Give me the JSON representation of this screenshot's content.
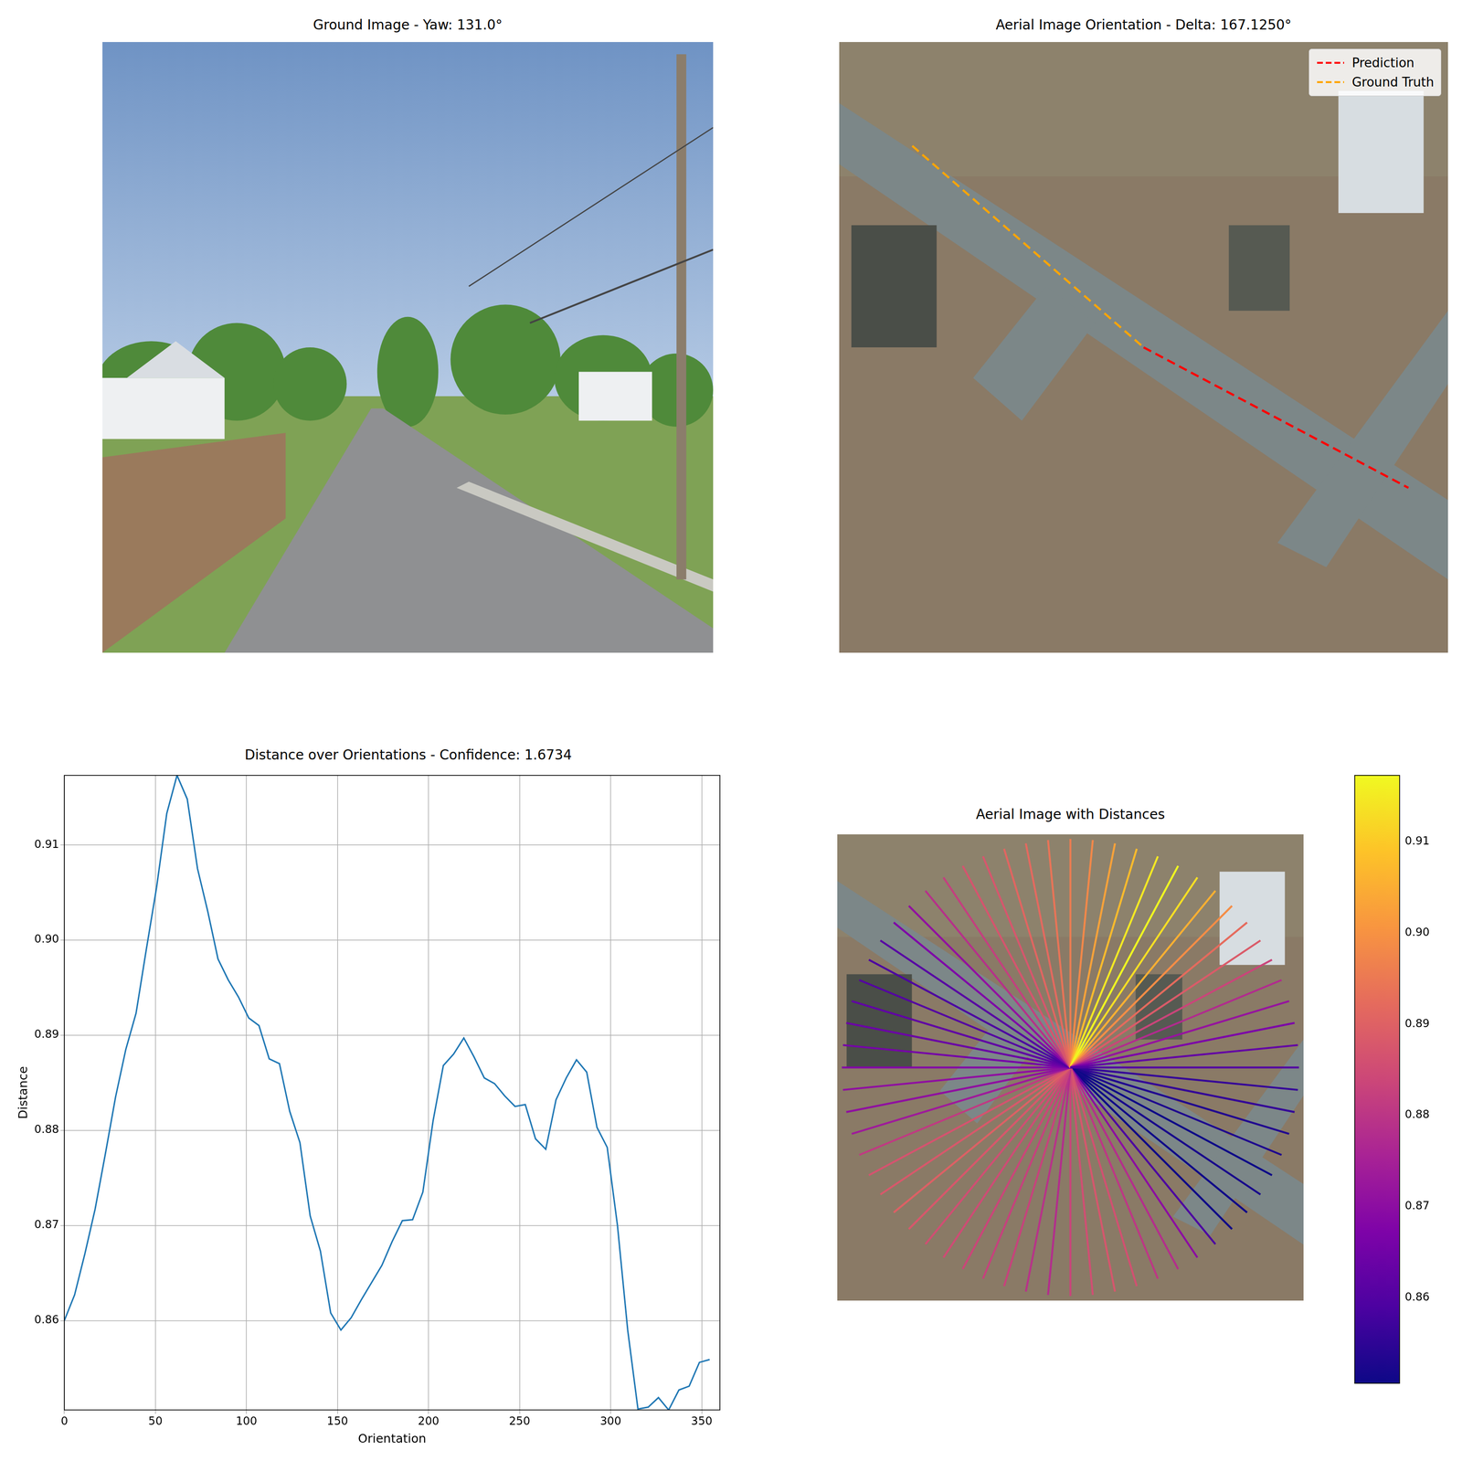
{
  "chart_data": [
    {
      "type": "image",
      "title": "Ground Image - Yaw: 131.0°"
    },
    {
      "type": "image",
      "title": "Aerial Image Orientation - Delta: 167.1250°",
      "series": [
        {
          "name": "Prediction",
          "color": "#ff0000",
          "line_style": "dashed"
        },
        {
          "name": "Ground Truth",
          "color": "#ffa500",
          "line_style": "dashed"
        }
      ],
      "legend": "upper right"
    },
    {
      "type": "line",
      "title": "Distance over Orientations - Confidence: 1.6734",
      "x_label": "Orientation",
      "y_label": "Distance",
      "color": "#1f77b4",
      "grid": true,
      "x": [
        0,
        5.625,
        11.25,
        16.875,
        22.5,
        28.125,
        33.75,
        39.375,
        45,
        50.625,
        56.25,
        61.875,
        67.5,
        73.125,
        78.75,
        84.375,
        90,
        95.625,
        101.25,
        106.875,
        112.5,
        118.125,
        123.75,
        129.375,
        135,
        140.625,
        146.25,
        151.875,
        157.5,
        163.125,
        168.75,
        174.375,
        180,
        185.625,
        191.25,
        196.875,
        202.5,
        208.125,
        213.75,
        219.375,
        225,
        230.625,
        236.25,
        241.875,
        247.5,
        253.125,
        258.75,
        264.375,
        270,
        275.625,
        281.25,
        286.875,
        292.5,
        298.125,
        303.75,
        309.375,
        315,
        320.625,
        326.25,
        331.875,
        337.5,
        343.125,
        348.75,
        354.375
      ],
      "values": [
        0.86,
        0.8627,
        0.867,
        0.8717,
        0.8775,
        0.8835,
        0.8885,
        0.8923,
        0.899,
        0.9055,
        0.9133,
        0.9173,
        0.9148,
        0.9075,
        0.903,
        0.898,
        0.8958,
        0.894,
        0.8918,
        0.891,
        0.8875,
        0.887,
        0.882,
        0.8787,
        0.871,
        0.8673,
        0.8608,
        0.859,
        0.8603,
        0.8622,
        0.864,
        0.8658,
        0.8683,
        0.8705,
        0.8706,
        0.8735,
        0.881,
        0.8868,
        0.888,
        0.8897,
        0.8877,
        0.8855,
        0.8849,
        0.8836,
        0.8825,
        0.8827,
        0.8791,
        0.878,
        0.8832,
        0.8855,
        0.8874,
        0.8861,
        0.8803,
        0.8782,
        0.87,
        0.859,
        0.8507,
        0.8509,
        0.8519,
        0.8506,
        0.8527,
        0.8531,
        0.8556,
        0.8559
      ],
      "xlim": [
        0,
        360
      ],
      "xticks": [
        0,
        50,
        100,
        150,
        200,
        250,
        300,
        350
      ],
      "ylim": [
        0.8506,
        0.9173
      ],
      "yticks": [
        0.86,
        0.87,
        0.88,
        0.89,
        {
          "value": 0.9,
          "label": "0.90"
        },
        0.91
      ]
    },
    {
      "type": "polar",
      "title": "Aerial Image with Distances",
      "tick_labels": false,
      "x": [
        0,
        5.625,
        11.25,
        16.875,
        22.5,
        28.125,
        33.75,
        39.375,
        45,
        50.625,
        56.25,
        61.875,
        67.5,
        73.125,
        78.75,
        84.375,
        90,
        95.625,
        101.25,
        106.875,
        112.5,
        118.125,
        123.75,
        129.375,
        135,
        140.625,
        146.25,
        151.875,
        157.5,
        163.125,
        168.75,
        174.375,
        180,
        185.625,
        191.25,
        196.875,
        202.5,
        208.125,
        213.75,
        219.375,
        225,
        230.625,
        236.25,
        241.875,
        247.5,
        253.125,
        258.75,
        264.375,
        270,
        275.625,
        281.25,
        286.875,
        292.5,
        298.125,
        303.75,
        309.375,
        315,
        320.625,
        326.25,
        331.875,
        337.5,
        343.125,
        348.75,
        354.375
      ],
      "values": [
        0.86,
        0.8627,
        0.867,
        0.8717,
        0.8775,
        0.8835,
        0.8885,
        0.8923,
        0.899,
        0.9055,
        0.9133,
        0.9173,
        0.9148,
        0.9075,
        0.903,
        0.898,
        0.8958,
        0.894,
        0.8918,
        0.891,
        0.8875,
        0.887,
        0.882,
        0.8787,
        0.871,
        0.8673,
        0.8608,
        0.859,
        0.8603,
        0.8622,
        0.864,
        0.8658,
        0.8683,
        0.8705,
        0.8706,
        0.8735,
        0.881,
        0.8868,
        0.888,
        0.8897,
        0.8877,
        0.8855,
        0.8849,
        0.8836,
        0.8825,
        0.8827,
        0.8791,
        0.878,
        0.8832,
        0.8855,
        0.8874,
        0.8861,
        0.8803,
        0.8782,
        0.87,
        0.859,
        0.8507,
        0.8509,
        0.8519,
        0.8506,
        0.8527,
        0.8531,
        0.8556,
        0.8559
      ],
      "colorbar": {
        "range": [
          0.8506,
          0.9173
        ],
        "ticks": [
          0.86,
          0.87,
          0.88,
          0.89,
          {
            "value": 0.9,
            "label": "0.90"
          },
          0.91
        ]
      }
    }
  ]
}
